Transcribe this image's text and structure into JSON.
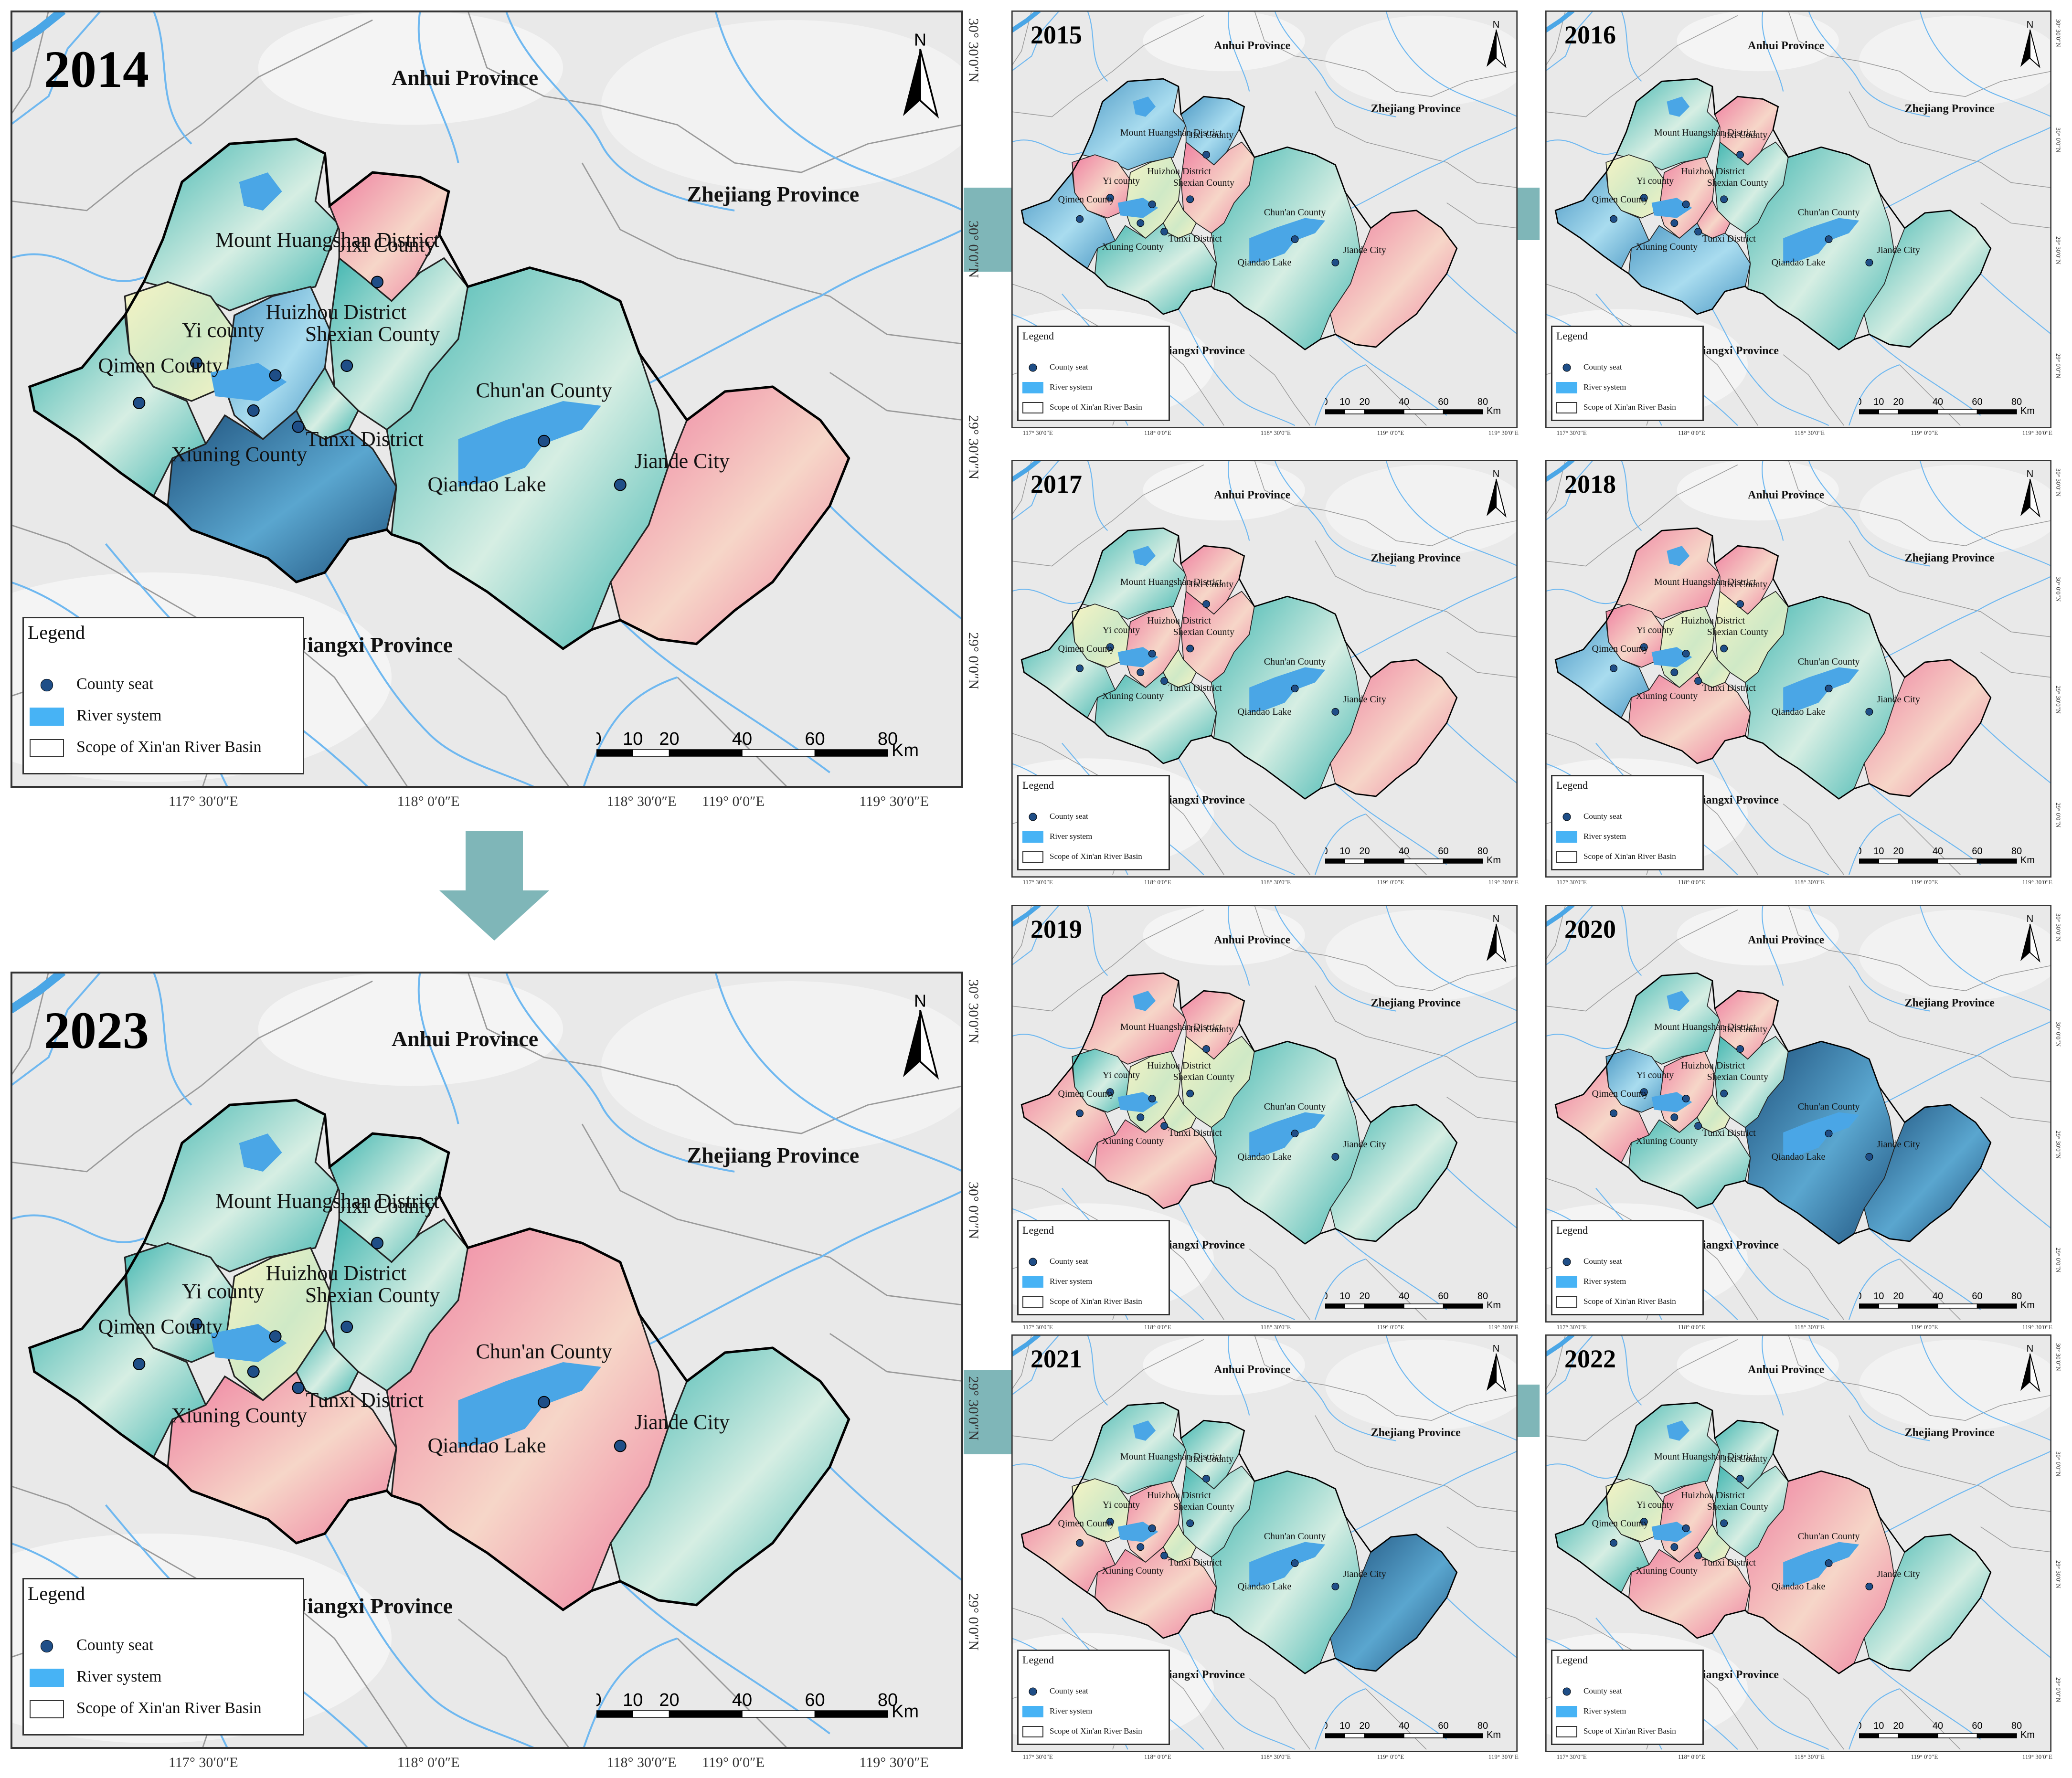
{
  "maps": [
    {
      "id": "main-2014",
      "year": "2014"
    },
    {
      "id": "main-2023",
      "year": "2023"
    },
    {
      "id": "small-2015",
      "year": "2015"
    },
    {
      "id": "small-2016",
      "year": "2016"
    },
    {
      "id": "small-2017",
      "year": "2017"
    },
    {
      "id": "small-2018",
      "year": "2018"
    },
    {
      "id": "small-2019",
      "year": "2019"
    },
    {
      "id": "small-2020",
      "year": "2020"
    },
    {
      "id": "small-2021",
      "year": "2021"
    },
    {
      "id": "small-2022",
      "year": "2022"
    }
  ],
  "north_label": "N",
  "provinces": {
    "anhui": "Anhui Province",
    "zhejiang": "Zhejiang Province",
    "jiangxi": "Jiangxi Province"
  },
  "districts": {
    "huangshan": "Mount Huangshan District",
    "jixi": "Jixi County",
    "yi": "Yi county",
    "huizhou": "Huizhou District",
    "shexian": "Shexian County",
    "qimen": "Qimen County",
    "chunan": "Chun'an County",
    "tunxi": "Tunxi District",
    "xiuning": "Xiuning County",
    "qiandao": "Qiandao Lake",
    "jiande": "Jiande City"
  },
  "legend": {
    "title": "Legend",
    "county_seat": "County seat",
    "river_system": "River system",
    "scope": "Scope of Xin'an River Basin"
  },
  "scale": {
    "ticks": [
      "0",
      "10",
      "20",
      "40",
      "60",
      "80"
    ],
    "unit": "Km"
  },
  "coords": {
    "lon": [
      "117° 30′0″E",
      "118° 0′0″E",
      "118° 30′0″E",
      "119° 0′0″E",
      "119° 30′0″E"
    ],
    "lat": [
      "30° 30′0″N",
      "30° 0′0″N",
      "29° 30′0″N",
      "29° 0′0″N"
    ]
  },
  "district_colors": {
    "2014": {
      "huangshan": "teal",
      "jixi": "pink",
      "yi": "yellow",
      "huizhou": "blue",
      "shexian": "teal",
      "qimen": "teal",
      "chunan": "teal",
      "tunxi": "teal",
      "xiuning": "darkblue",
      "jiande": "pink"
    },
    "2015": {
      "huangshan": "blue",
      "jixi": "blue",
      "yi": "pink",
      "huizhou": "yellow",
      "shexian": "pink",
      "qimen": "blue",
      "chunan": "teal",
      "tunxi": "yellow",
      "xiuning": "teal",
      "jiande": "pink"
    },
    "2016": {
      "huangshan": "teal",
      "jixi": "pink",
      "yi": "yellow",
      "huizhou": "pink",
      "shexian": "teal",
      "qimen": "blue",
      "chunan": "teal",
      "tunxi": "pink",
      "xiuning": "blue",
      "jiande": "teal"
    },
    "2017": {
      "huangshan": "teal",
      "jixi": "pink",
      "yi": "yellow",
      "huizhou": "pink",
      "shexian": "pink",
      "qimen": "teal",
      "chunan": "teal",
      "tunxi": "yellow",
      "xiuning": "teal",
      "jiande": "pink"
    },
    "2018": {
      "huangshan": "pink",
      "jixi": "pink",
      "yi": "pink",
      "huizhou": "yellow",
      "shexian": "yellow",
      "qimen": "blue",
      "chunan": "teal",
      "tunxi": "yellow",
      "xiuning": "pink",
      "jiande": "pink"
    },
    "2019": {
      "huangshan": "pink",
      "jixi": "pink",
      "yi": "teal",
      "huizhou": "yellow",
      "shexian": "yellow",
      "qimen": "pink",
      "chunan": "teal",
      "tunxi": "yellow",
      "xiuning": "pink",
      "jiande": "teal"
    },
    "2020": {
      "huangshan": "teal",
      "jixi": "pink",
      "yi": "blue",
      "huizhou": "pink",
      "shexian": "teal",
      "qimen": "pink",
      "chunan": "darkblue",
      "tunxi": "yellow",
      "xiuning": "teal",
      "jiande": "darkblue"
    },
    "2021": {
      "huangshan": "teal",
      "jixi": "teal",
      "yi": "yellow",
      "huizhou": "pink",
      "shexian": "teal",
      "qimen": "pink",
      "chunan": "teal",
      "tunxi": "yellow",
      "xiuning": "pink",
      "jiande": "darkblue"
    },
    "2022": {
      "huangshan": "teal",
      "jixi": "teal",
      "yi": "yellow",
      "huizhou": "pink",
      "shexian": "teal",
      "qimen": "teal",
      "chunan": "pink",
      "tunxi": "yellow",
      "xiuning": "pink",
      "jiande": "teal"
    },
    "2023": {
      "huangshan": "teal",
      "jixi": "teal",
      "yi": "teal",
      "huizhou": "yellow",
      "shexian": "teal",
      "qimen": "teal",
      "chunan": "pink",
      "tunxi": "teal",
      "xiuning": "pink",
      "jiande": "teal"
    }
  },
  "palette": {
    "darkblue": "#2f6f9a",
    "blue": "#6ab2d3",
    "teal": "#6cc7c3",
    "yellow": "#eef0b4",
    "pink": "#f19bb0",
    "lake": "#4aa6e6",
    "river": "#6fb8f0",
    "county_seat": "#1f4e87",
    "terrain": "#e9e9e9",
    "boundary": "#9a9a9a",
    "connector": "#7fb6b8"
  }
}
